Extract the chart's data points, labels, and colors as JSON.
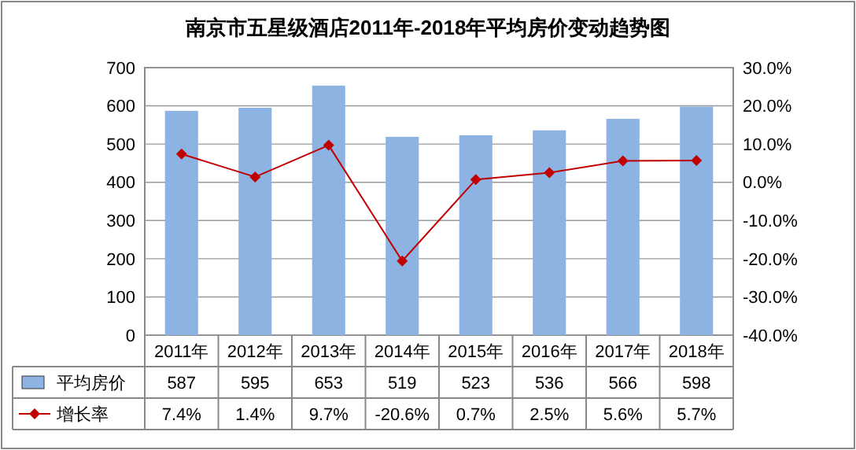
{
  "chart_data": {
    "type": "bar",
    "title": "南京市五星级酒店2011年-2018年平均房价变动趋势图",
    "categories": [
      "2011年",
      "2012年",
      "2013年",
      "2014年",
      "2015年",
      "2016年",
      "2017年",
      "2018年"
    ],
    "series": [
      {
        "name": "平均房价",
        "color": "#8db3e2",
        "values": [
          587,
          595,
          653,
          519,
          523,
          536,
          566,
          598
        ],
        "value_labels": [
          "587",
          "595",
          "653",
          "519",
          "523",
          "536",
          "566",
          "598"
        ]
      },
      {
        "name": "增长率",
        "type": "line",
        "axis": "y2",
        "color": "#c00000",
        "values": [
          7.4,
          1.4,
          9.7,
          -20.6,
          0.7,
          2.5,
          5.6,
          5.7
        ],
        "value_labels": [
          "7.4%",
          "1.4%",
          "9.7%",
          "-20.6%",
          "0.7%",
          "2.5%",
          "5.6%",
          "5.7%"
        ]
      }
    ],
    "ylim": [
      0,
      700
    ],
    "yticks": [
      0,
      100,
      200,
      300,
      400,
      500,
      600,
      700
    ],
    "y2lim": [
      -40,
      30
    ],
    "y2ticks": [
      {
        "value": -40,
        "label": "-40.0%"
      },
      {
        "value": -30,
        "label": "-30.0%"
      },
      {
        "value": -20,
        "label": "-20.0%"
      },
      {
        "value": -10,
        "label": "-10.0%"
      },
      {
        "value": 0,
        "label": "0.0%"
      },
      {
        "value": 10,
        "label": "10.0%"
      },
      {
        "value": 20,
        "label": "20.0%"
      },
      {
        "value": 30,
        "label": "30.0%"
      }
    ],
    "grid": "y",
    "legend": "bottom",
    "marker": "diamond",
    "line_style": "solid"
  }
}
